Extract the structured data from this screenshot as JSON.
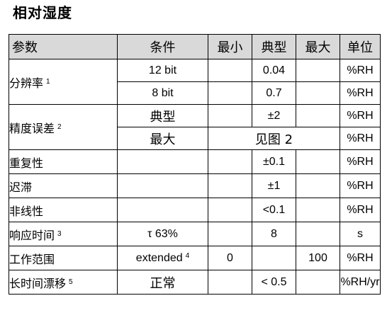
{
  "title": "相对湿度",
  "header": {
    "param": "参数",
    "condition": "条件",
    "min": "最小",
    "typ": "典型",
    "max": "最大",
    "unit": "单位"
  },
  "rows": {
    "resolution": {
      "name": "分辨率",
      "note": "1",
      "sub": [
        {
          "condition": "12 bit",
          "min": "",
          "typ": "0.04",
          "max": "",
          "unit": "%RH"
        },
        {
          "condition": "8 bit",
          "min": "",
          "typ": "0.7",
          "max": "",
          "unit": "%RH"
        }
      ]
    },
    "accuracy": {
      "name": "精度误差",
      "note": "2",
      "sub": [
        {
          "condition": "典型",
          "min": "",
          "typ": "±2",
          "max": "",
          "unit": "%RH"
        },
        {
          "condition": "最大",
          "merged": "见图 2",
          "unit": "%RH"
        }
      ]
    },
    "repeatability": {
      "name": "重复性",
      "condition": "",
      "min": "",
      "typ": "±0.1",
      "max": "",
      "unit": "%RH"
    },
    "hysteresis": {
      "name": "迟滞",
      "condition": "",
      "min": "",
      "typ": "±1",
      "max": "",
      "unit": "%RH"
    },
    "nonlinearity": {
      "name": "非线性",
      "condition": "",
      "min": "",
      "typ": "<0.1",
      "max": "",
      "unit": "%RH"
    },
    "response": {
      "name": "响应时间",
      "note": "3",
      "condition": "τ 63%",
      "min": "",
      "typ": "8",
      "max": "",
      "unit": "s"
    },
    "range": {
      "name": "工作范围",
      "condition": "extended",
      "condition_note": "4",
      "min": "0",
      "typ": "",
      "max": "100",
      "unit": "%RH"
    },
    "drift": {
      "name": "长时间漂移",
      "note": "5",
      "condition": "正常",
      "min": "",
      "typ": "< 0.5",
      "max": "",
      "unit": "%RH/yr"
    }
  }
}
